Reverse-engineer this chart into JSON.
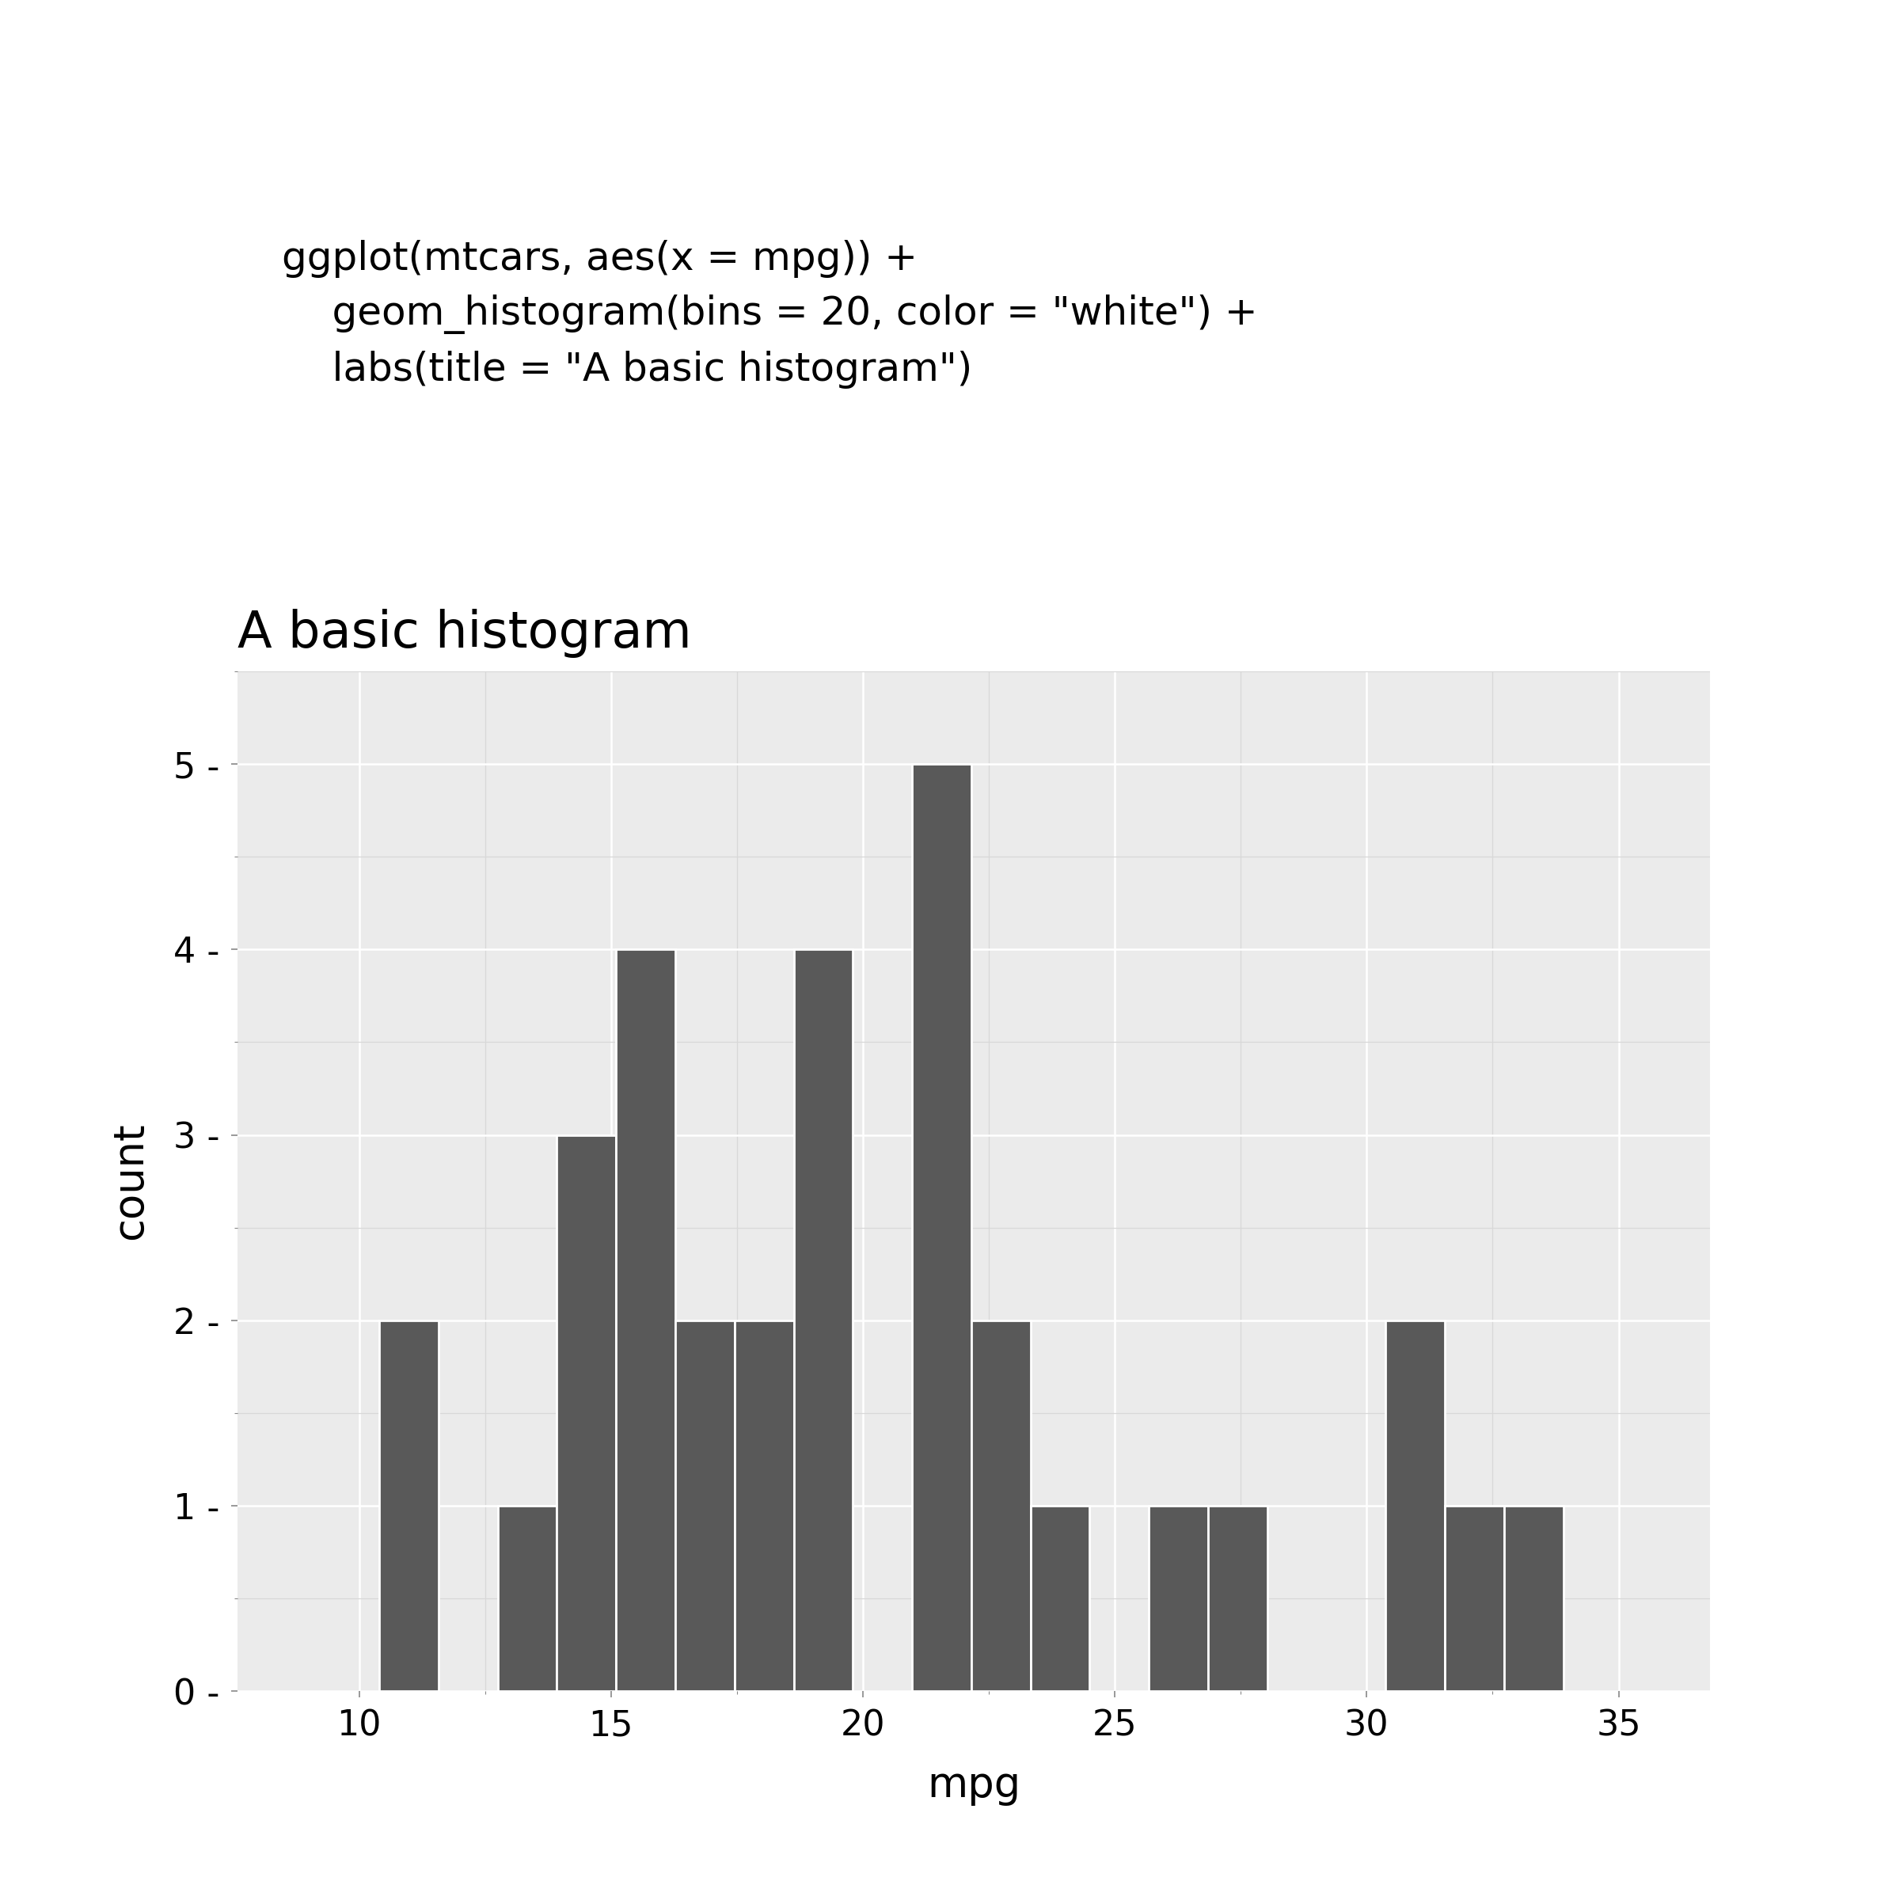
{
  "title": "A basic histogram",
  "xlabel": "mpg",
  "ylabel": "count",
  "code_line1": "ggplot(mtcars, aes(x = mpg)) +",
  "code_line2": "    geom_histogram(bins = 20, color = \"white\") +",
  "code_line3": "    labs(title = \"A basic histogram\")",
  "bar_color": "#595959",
  "bar_edge_color": "white",
  "background_color": "#EBEBEB",
  "panel_grid_major_color": "#FFFFFF",
  "xlim_left": 7.585,
  "xlim_right": 36.815,
  "ylim_top": 5.5,
  "xticks": [
    10,
    15,
    20,
    25,
    30,
    35
  ],
  "yticks": [
    0,
    1,
    2,
    3,
    4,
    5
  ],
  "title_fontsize": 46,
  "axis_label_fontsize": 38,
  "tick_fontsize": 32,
  "code_fontsize": 36,
  "fig_width": 24,
  "fig_height": 24,
  "mtcars_mpg": [
    21.0,
    21.0,
    22.8,
    21.4,
    18.7,
    18.1,
    14.3,
    24.4,
    22.8,
    19.2,
    17.8,
    16.4,
    17.3,
    15.2,
    10.4,
    10.4,
    14.7,
    32.4,
    30.4,
    33.9,
    21.5,
    15.5,
    15.2,
    13.3,
    19.2,
    27.3,
    26.0,
    30.4,
    15.8,
    19.7,
    15.0,
    21.4
  ],
  "height_ratio_code": 1,
  "height_ratio_plot": 2.5
}
